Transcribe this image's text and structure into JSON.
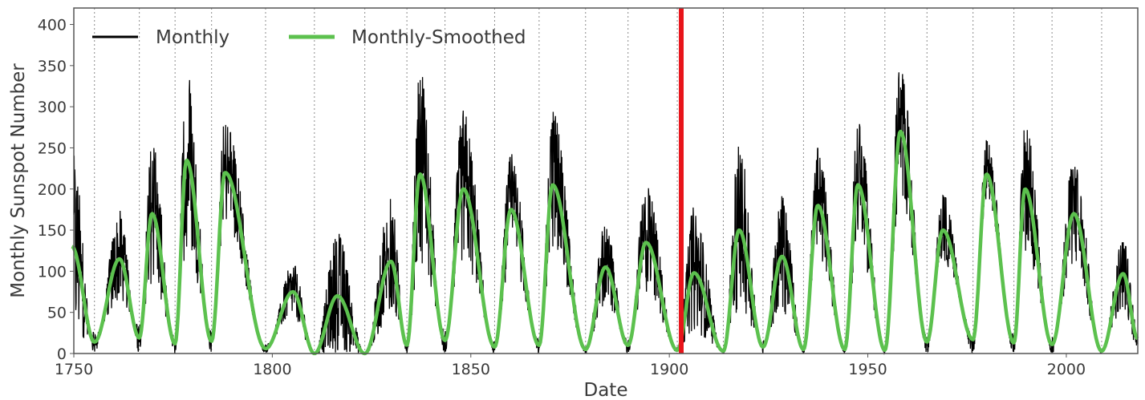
{
  "chart_data": {
    "type": "line",
    "xlabel": "Date",
    "ylabel": "Monthly Sunspot Number",
    "xlim": [
      1750,
      2018
    ],
    "ylim": [
      0,
      420
    ],
    "x_ticks": [
      1750,
      1800,
      1850,
      1900,
      1950,
      2000
    ],
    "y_ticks": [
      0,
      50,
      100,
      150,
      200,
      250,
      300,
      350,
      400
    ],
    "grid": "vertical dotted lines at cycle boundaries",
    "cycle_minima_years": [
      1755.2,
      1766.5,
      1775.5,
      1784.7,
      1798.3,
      1810.6,
      1823.3,
      1833.9,
      1843.5,
      1856.0,
      1867.2,
      1878.9,
      1889.6,
      1902.0,
      1913.6,
      1923.6,
      1933.8,
      1944.2,
      1954.3,
      1964.9,
      1976.5,
      1986.8,
      1996.4,
      2008.9
    ],
    "vertical_marker": {
      "x": 1903,
      "color": "#e8141a"
    },
    "legend": {
      "placement": "top-left",
      "entries": [
        {
          "label": "Monthly",
          "color": "#000000"
        },
        {
          "label": "Monthly-Smoothed",
          "color": "#5cc14e"
        }
      ]
    },
    "series": [
      {
        "name": "Monthly-Smoothed",
        "color": "#5cc14e",
        "x": [
          1749.5,
          1755.2,
          1761.5,
          1766.5,
          1769.7,
          1775.5,
          1778.4,
          1784.7,
          1788.1,
          1798.3,
          1805.2,
          1810.6,
          1816.4,
          1823.3,
          1829.9,
          1833.9,
          1837.2,
          1843.5,
          1848.1,
          1856.0,
          1860.1,
          1867.2,
          1870.6,
          1878.9,
          1883.9,
          1889.6,
          1894.1,
          1902.0,
          1906.2,
          1913.6,
          1917.6,
          1923.6,
          1928.4,
          1933.8,
          1937.4,
          1944.2,
          1947.5,
          1954.3,
          1958.2,
          1964.9,
          1968.9,
          1976.5,
          1979.9,
          1986.8,
          1989.6,
          1996.4,
          2001.9,
          2008.9,
          2014.3,
          2018.0
        ],
        "y": [
          130,
          14,
          115,
          19,
          170,
          12,
          235,
          15,
          220,
          6,
          75,
          0,
          70,
          0,
          112,
          10,
          218,
          16,
          200,
          8,
          175,
          10,
          205,
          5,
          105,
          10,
          135,
          4,
          98,
          3,
          150,
          8,
          118,
          5,
          180,
          5,
          205,
          4,
          270,
          14,
          150,
          17,
          218,
          13,
          200,
          11,
          170,
          3,
          97,
          18
        ]
      },
      {
        "name": "Monthly",
        "color": "#000000",
        "x": [
          1749.5,
          1755.2,
          1761.5,
          1766.5,
          1769.7,
          1775.5,
          1778.4,
          1784.7,
          1788.1,
          1798.3,
          1805.2,
          1810.6,
          1816.4,
          1823.3,
          1829.9,
          1833.9,
          1837.2,
          1843.5,
          1848.1,
          1856.0,
          1860.1,
          1867.2,
          1870.6,
          1878.9,
          1883.9,
          1889.6,
          1894.1,
          1902.0,
          1906.2,
          1913.6,
          1917.6,
          1923.6,
          1928.4,
          1933.8,
          1937.4,
          1944.2,
          1947.5,
          1954.3,
          1958.2,
          1964.9,
          1968.9,
          1976.5,
          1979.9,
          1986.8,
          1989.6,
          1996.4,
          2001.9,
          2008.9,
          2014.3,
          2018.0
        ],
        "y": [
          265,
          0,
          175,
          0,
          265,
          0,
          358,
          0,
          290,
          0,
          110,
          0,
          150,
          0,
          190,
          0,
          345,
          0,
          300,
          0,
          245,
          0,
          295,
          0,
          160,
          0,
          205,
          0,
          180,
          0,
          258,
          0,
          195,
          0,
          250,
          0,
          285,
          0,
          360,
          0,
          195,
          0,
          265,
          0,
          285,
          0,
          240,
          0,
          145,
          30
        ]
      }
    ]
  }
}
